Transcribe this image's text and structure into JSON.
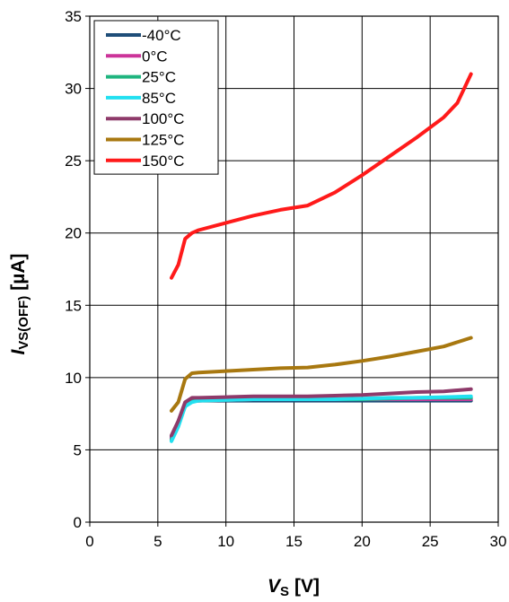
{
  "chart_data": {
    "type": "line",
    "title": "",
    "xlabel": {
      "main": "V",
      "sub": "S",
      "unit": "[V]"
    },
    "ylabel": {
      "main": "I",
      "sub": "VS(OFF)",
      "unit": "[µA]"
    },
    "xlim": [
      0,
      30
    ],
    "ylim": [
      0,
      35
    ],
    "x_ticks": [
      0,
      5,
      10,
      15,
      20,
      25,
      30
    ],
    "y_ticks": [
      0,
      5,
      10,
      15,
      20,
      25,
      30,
      35
    ],
    "x_tick_labels": [
      "0",
      "5",
      "10",
      "15",
      "20",
      "25",
      "30"
    ],
    "y_tick_labels": [
      "0",
      "5",
      "10",
      "15",
      "20",
      "25",
      "30",
      "35"
    ],
    "grid": true,
    "legend_position": "top-left",
    "series": [
      {
        "name": "-40°C",
        "color": "#1f4e79",
        "x": [
          6,
          6.5,
          7,
          7.5,
          8,
          10,
          12,
          14,
          16,
          18,
          20,
          22,
          24,
          26,
          28
        ],
        "y": [
          5.9,
          6.8,
          8.0,
          8.4,
          8.4,
          8.4,
          8.4,
          8.4,
          8.4,
          8.4,
          8.4,
          8.4,
          8.4,
          8.4,
          8.4
        ]
      },
      {
        "name": "0°C",
        "color": "#cc3399",
        "x": [
          6,
          6.5,
          7,
          7.5,
          8,
          10,
          12,
          14,
          16,
          18,
          20,
          22,
          24,
          26,
          28
        ],
        "y": [
          5.8,
          6.8,
          8.1,
          8.4,
          8.4,
          8.45,
          8.5,
          8.5,
          8.5,
          8.5,
          8.5,
          8.5,
          8.5,
          8.5,
          8.5
        ]
      },
      {
        "name": "25°C",
        "color": "#1fb57f",
        "x": [
          6,
          6.5,
          7,
          7.5,
          8,
          10,
          12,
          14,
          16,
          18,
          20,
          22,
          24,
          26,
          28
        ],
        "y": [
          5.7,
          6.7,
          8.1,
          8.4,
          8.4,
          8.45,
          8.5,
          8.5,
          8.5,
          8.5,
          8.5,
          8.55,
          8.6,
          8.6,
          8.6
        ]
      },
      {
        "name": "85°C",
        "color": "#22e0f0",
        "x": [
          6,
          6.5,
          7,
          7.5,
          8,
          10,
          12,
          14,
          16,
          18,
          20,
          22,
          24,
          26,
          28
        ],
        "y": [
          5.6,
          6.6,
          8.0,
          8.3,
          8.4,
          8.45,
          8.5,
          8.5,
          8.5,
          8.5,
          8.55,
          8.6,
          8.6,
          8.65,
          8.7
        ]
      },
      {
        "name": "100°C",
        "color": "#8e3a6a",
        "x": [
          6,
          6.5,
          7,
          7.5,
          8,
          10,
          12,
          14,
          16,
          18,
          20,
          22,
          24,
          26,
          28
        ],
        "y": [
          6.0,
          7.0,
          8.3,
          8.6,
          8.6,
          8.65,
          8.7,
          8.7,
          8.7,
          8.75,
          8.8,
          8.9,
          9.0,
          9.05,
          9.2
        ]
      },
      {
        "name": "125°C",
        "color": "#a87810",
        "x": [
          6,
          6.5,
          7,
          7.5,
          8,
          10,
          12,
          14,
          16,
          18,
          20,
          22,
          24,
          26,
          28
        ],
        "y": [
          7.7,
          8.3,
          9.9,
          10.3,
          10.35,
          10.45,
          10.55,
          10.65,
          10.7,
          10.9,
          11.15,
          11.45,
          11.8,
          12.15,
          12.75
        ]
      },
      {
        "name": "150°C",
        "color": "#ff1a1a",
        "x": [
          6,
          6.5,
          7,
          7.5,
          8,
          10,
          12,
          14,
          16,
          18,
          20,
          22,
          24,
          26,
          27,
          28
        ],
        "y": [
          16.9,
          17.8,
          19.6,
          20.0,
          20.2,
          20.7,
          21.2,
          21.6,
          21.9,
          22.8,
          24.0,
          25.3,
          26.6,
          28.0,
          29.0,
          31.0
        ]
      }
    ]
  }
}
